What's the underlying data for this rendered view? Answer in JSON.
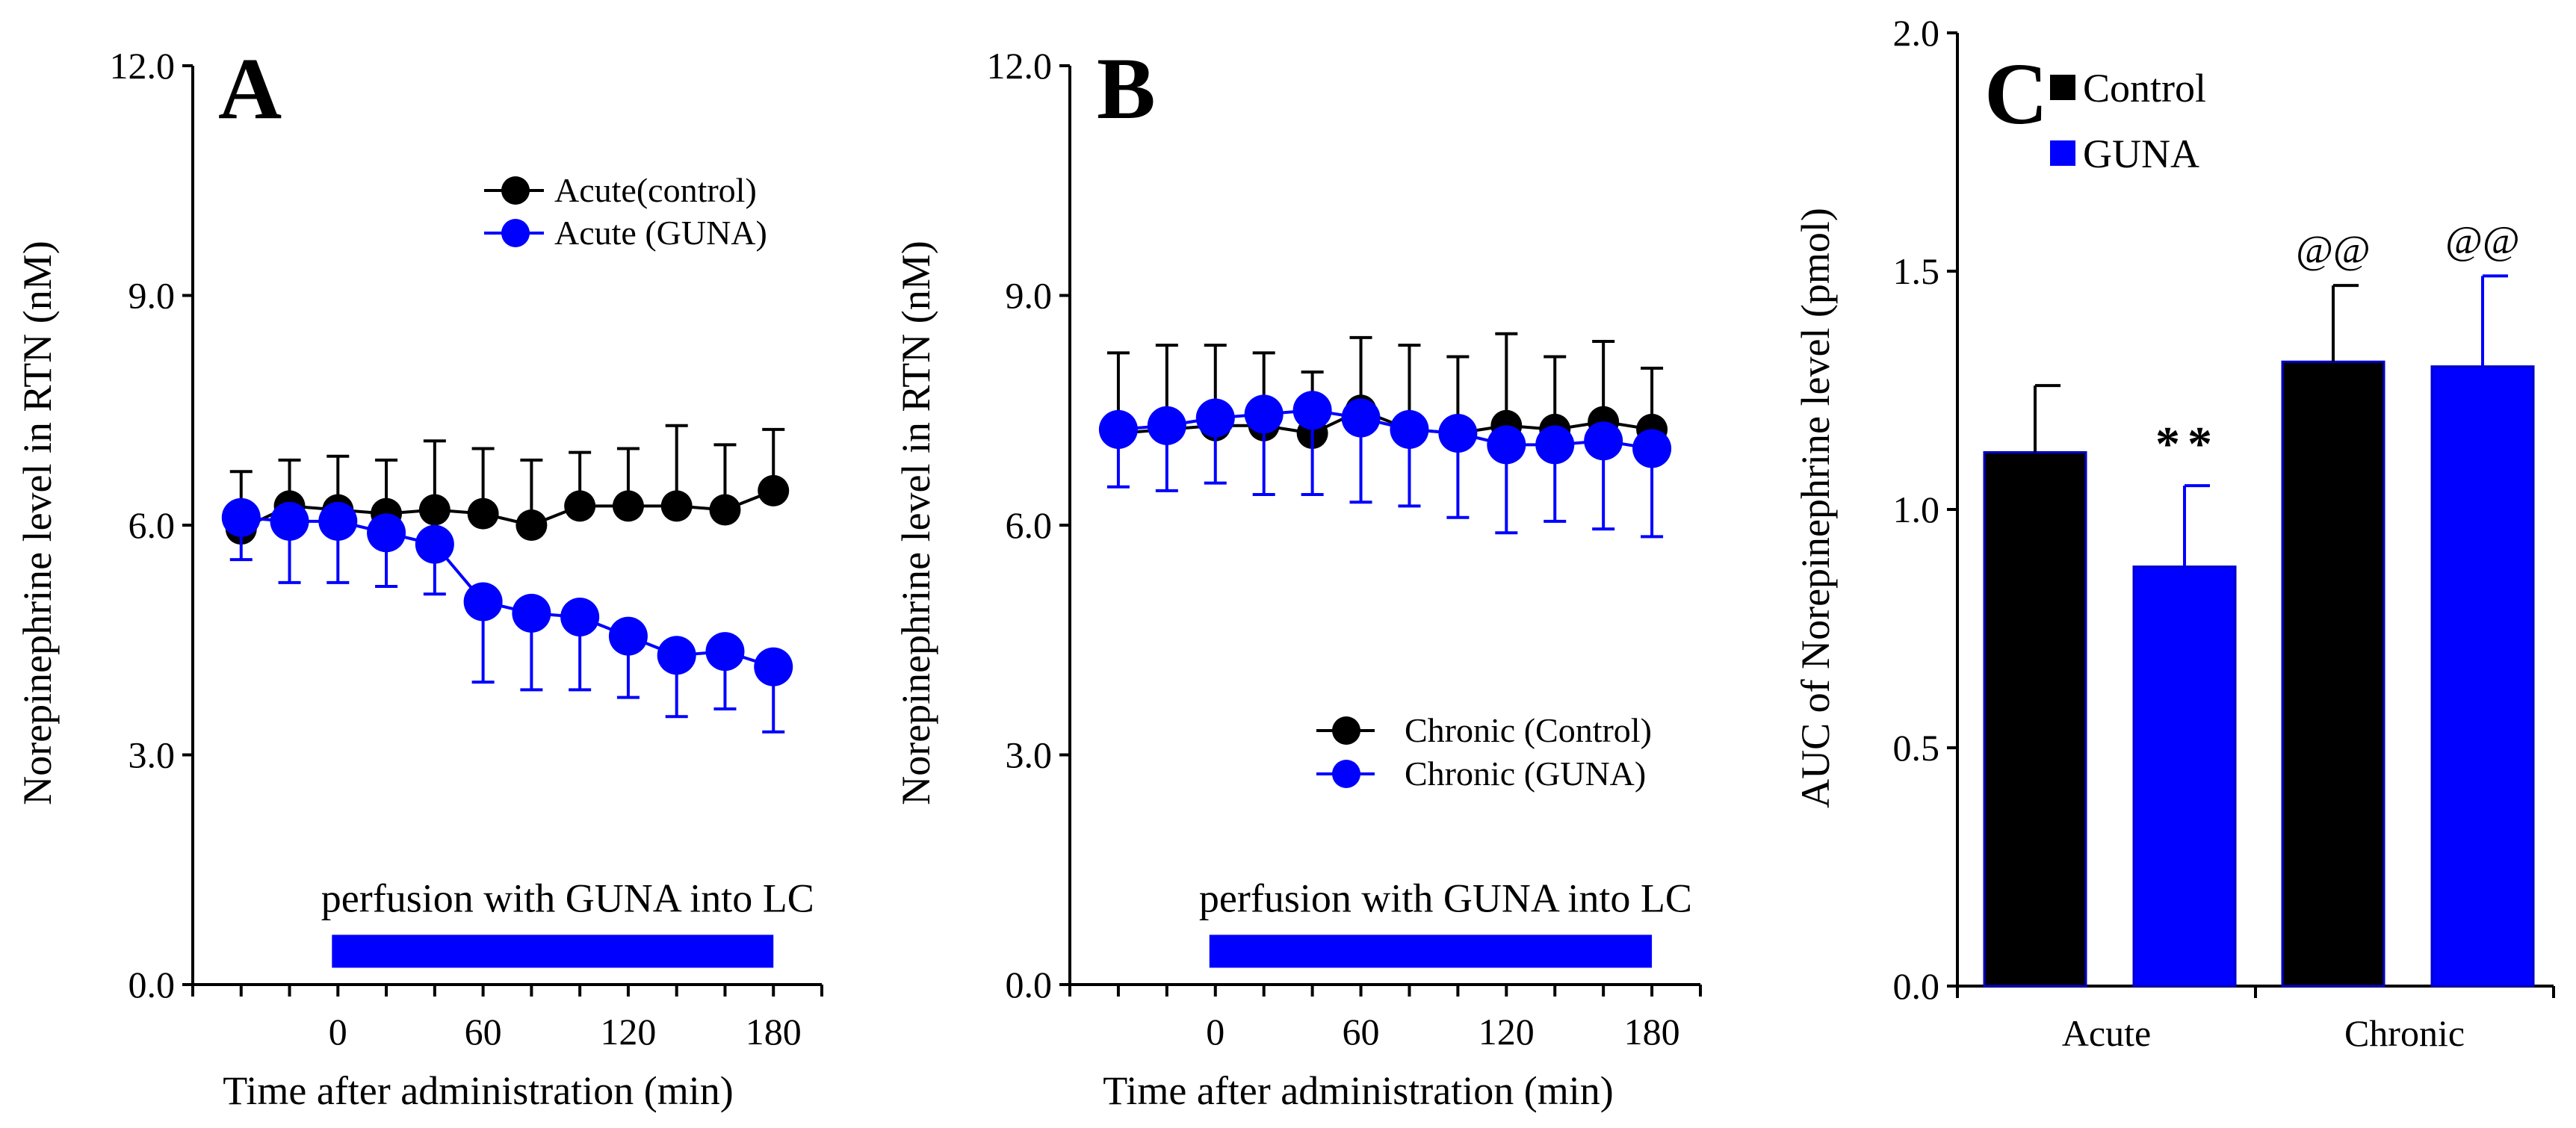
{
  "colors": {
    "control": "#000000",
    "guna": "#0000ff",
    "axis": "#000000"
  },
  "chart_data": [
    {
      "panel": "A",
      "type": "line",
      "ylabel": "Norepinephrine level in RTN (nM)",
      "xlabel": "Time after administration (min)",
      "yticks": [
        "0.0",
        "3.0",
        "6.0",
        "9.0",
        "12.0"
      ],
      "xticks": [
        "0",
        "60",
        "120",
        "180"
      ],
      "ylim": [
        0,
        12
      ],
      "xlim": [
        -60,
        200
      ],
      "perfusion": {
        "label": "perfusion with GUNA into LC",
        "start": 0,
        "end": 180
      },
      "legend_position": "top-right",
      "x": [
        -40,
        -20,
        0,
        20,
        40,
        60,
        80,
        100,
        120,
        140,
        160,
        180
      ],
      "series": [
        {
          "name": "Acute(control)",
          "color": "#000000",
          "values": [
            5.95,
            6.25,
            6.2,
            6.15,
            6.2,
            6.15,
            6.0,
            6.25,
            6.25,
            6.25,
            6.2,
            6.45
          ],
          "error": [
            0.75,
            0.6,
            0.7,
            0.7,
            0.9,
            0.85,
            0.85,
            0.7,
            0.75,
            1.05,
            0.85,
            0.8
          ],
          "error_dir": "up"
        },
        {
          "name": "Acute (GUNA)",
          "color": "#0000ff",
          "values": [
            6.1,
            6.05,
            6.05,
            5.9,
            5.75,
            5.0,
            4.85,
            4.8,
            4.55,
            4.3,
            4.35,
            4.15
          ],
          "error": [
            0.55,
            0.8,
            0.8,
            0.7,
            0.65,
            1.05,
            1.0,
            0.95,
            0.8,
            0.8,
            0.75,
            0.85
          ],
          "error_dir": "down"
        }
      ]
    },
    {
      "panel": "B",
      "type": "line",
      "ylabel": "Norepinephrine level in RTN (nM)",
      "xlabel": "Time after administration (min)",
      "yticks": [
        "0.0",
        "3.0",
        "6.0",
        "9.0",
        "12.0"
      ],
      "xticks": [
        "0",
        "60",
        "120",
        "180"
      ],
      "ylim": [
        0,
        12
      ],
      "xlim": [
        -60,
        200
      ],
      "perfusion": {
        "label": "perfusion with GUNA into LC",
        "start": 0,
        "end": 180
      },
      "legend_position": "lower-right",
      "x": [
        -40,
        -20,
        0,
        20,
        40,
        60,
        80,
        100,
        120,
        140,
        160,
        180
      ],
      "series": [
        {
          "name": "Chronic (Control)",
          "color": "#000000",
          "values": [
            7.2,
            7.25,
            7.3,
            7.3,
            7.2,
            7.5,
            7.25,
            7.2,
            7.3,
            7.25,
            7.35,
            7.25
          ],
          "error": [
            1.05,
            1.1,
            1.05,
            0.95,
            0.8,
            0.95,
            1.1,
            1.0,
            1.2,
            0.95,
            1.05,
            0.8
          ],
          "error_dir": "up"
        },
        {
          "name": "Chronic (GUNA)",
          "color": "#0000ff",
          "values": [
            7.25,
            7.3,
            7.4,
            7.45,
            7.5,
            7.4,
            7.25,
            7.2,
            7.05,
            7.05,
            7.1,
            7.0
          ],
          "error": [
            0.75,
            0.85,
            0.85,
            1.05,
            1.1,
            1.1,
            1.0,
            1.1,
            1.15,
            1.0,
            1.15,
            1.15
          ],
          "error_dir": "down"
        }
      ]
    },
    {
      "panel": "C",
      "type": "bar",
      "ylabel": "AUC of Norepinephrine level (pmol)",
      "xlabel": "",
      "categories": [
        "Acute",
        "Chronic"
      ],
      "yticks": [
        "0.0",
        "0.5",
        "1.0",
        "1.5",
        "2.0"
      ],
      "ylim": [
        0,
        2.0
      ],
      "legend_position": "top-left",
      "series": [
        {
          "name": "Control",
          "color": "#000000",
          "values": [
            1.12,
            1.31
          ],
          "error": [
            0.14,
            0.16
          ],
          "annotations": [
            "",
            "@@"
          ]
        },
        {
          "name": "GUNA",
          "color": "#0000ff",
          "values": [
            0.88,
            1.3
          ],
          "error": [
            0.17,
            0.19
          ],
          "annotations": [
            "**",
            "@@"
          ]
        }
      ]
    }
  ]
}
